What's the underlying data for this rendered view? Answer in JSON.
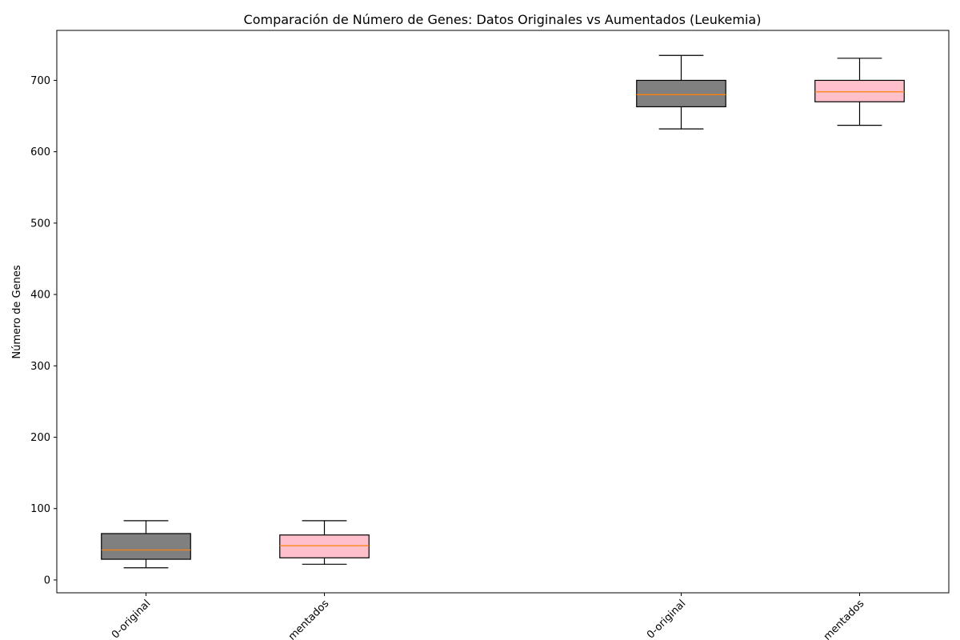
{
  "chart_data": {
    "type": "boxplot",
    "title": "Comparación de Número de Genes: Datos Originales vs Aumentados (Leukemia)",
    "xlabel": "",
    "ylabel": "Número de Genes",
    "ylim": [
      -18,
      770
    ],
    "yticks": [
      0,
      100,
      200,
      300,
      400,
      500,
      600,
      700
    ],
    "grid": false,
    "x_tick_labels_visible": [
      "0-original",
      "mentados",
      "0-original",
      "mentados"
    ],
    "boxes": [
      {
        "x": 1,
        "whisker_low": 17,
        "q1": 29,
        "median": 42,
        "q3": 65,
        "whisker_high": 83,
        "fill": "#808080"
      },
      {
        "x": 2,
        "whisker_low": 22,
        "q1": 31,
        "median": 48,
        "q3": 63,
        "whisker_high": 83,
        "fill": "#ffc0cb"
      },
      {
        "x": 4,
        "whisker_low": 632,
        "q1": 663,
        "median": 680,
        "q3": 700,
        "whisker_high": 735,
        "fill": "#808080"
      },
      {
        "x": 5,
        "whisker_low": 637,
        "q1": 670,
        "median": 684,
        "q3": 700,
        "whisker_high": 731,
        "fill": "#ffc0cb"
      }
    ],
    "xlim": [
      0.5,
      5.5
    ],
    "colors": {
      "median": "#ff7f0e",
      "edge": "#000000"
    }
  }
}
